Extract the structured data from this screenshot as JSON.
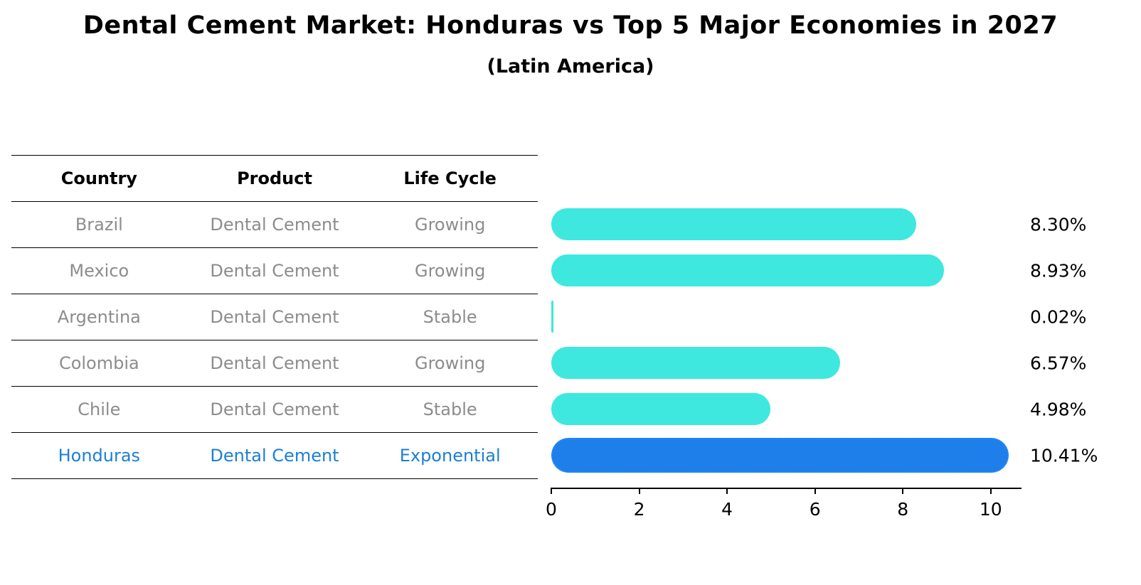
{
  "title": "Dental Cement Market: Honduras vs Top 5 Major Economies in 2027",
  "subtitle": "(Latin America)",
  "table": {
    "headers": [
      "Country",
      "Product",
      "Life Cycle"
    ],
    "rows": [
      {
        "country": "Brazil",
        "product": "Dental Cement",
        "life_cycle": "Growing"
      },
      {
        "country": "Mexico",
        "product": "Dental Cement",
        "life_cycle": "Growing"
      },
      {
        "country": "Argentina",
        "product": "Dental Cement",
        "life_cycle": "Stable"
      },
      {
        "country": "Colombia",
        "product": "Dental Cement",
        "life_cycle": "Growing"
      },
      {
        "country": "Chile",
        "product": "Dental Cement",
        "life_cycle": "Stable"
      },
      {
        "country": "Honduras",
        "product": "Dental Cement",
        "life_cycle": "Exponential"
      }
    ]
  },
  "chart_data": {
    "type": "bar",
    "orientation": "horizontal",
    "title": "Dental Cement Market: Honduras vs Top 5 Major Economies in 2027",
    "subtitle": "(Latin America)",
    "categories": [
      "Brazil",
      "Mexico",
      "Argentina",
      "Colombia",
      "Chile",
      "Honduras"
    ],
    "values": [
      8.3,
      8.93,
      0.02,
      6.57,
      4.98,
      10.41
    ],
    "value_labels": [
      "8.30%",
      "8.93%",
      "0.02%",
      "6.57%",
      "4.98%",
      "10.41%"
    ],
    "highlight_category": "Honduras",
    "xlabel": "",
    "ylabel": "",
    "xlim": [
      0,
      10.7
    ],
    "xticks": [
      0,
      2,
      4,
      6,
      8,
      10
    ],
    "grid": false,
    "legend": "none",
    "colors": {
      "bar": "#3ee8de",
      "highlight_bar": "#1e7fea",
      "highlight_outline": "#1e90ff",
      "row_text": "#8c8c8c",
      "highlight_text": "#1b7fd4",
      "value_text": "#000000"
    }
  }
}
